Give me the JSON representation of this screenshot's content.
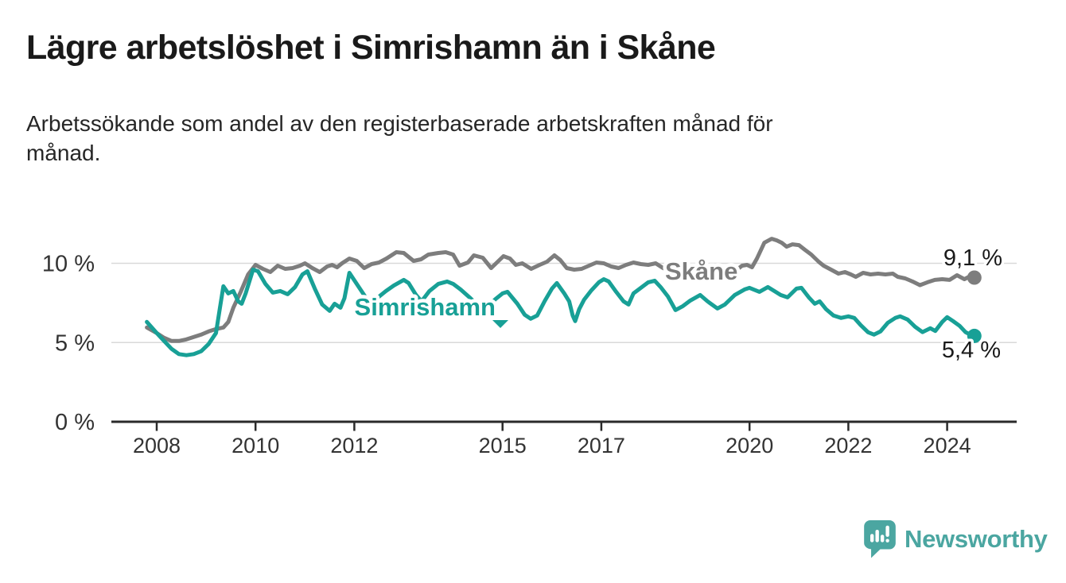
{
  "header": {
    "title": "Lägre arbetslöshet i Simrishamn än i Skåne",
    "subtitle": "Arbetssökande som andel av den registerbaserade arbetskraften månad för månad.",
    "subtitle_lines": [
      "Arbetssökande som andel av den registerbaserade arbetskraften månad för",
      "månad."
    ]
  },
  "footer": {
    "brand": "Newsworthy",
    "logo_icon": "speech-bubble-bar-chart-icon"
  },
  "colors": {
    "skane_line": "#7d7d7d",
    "simrishamn_line": "#18a096",
    "logo_teal": "#4ba6a1",
    "axis": "#2a2a2a",
    "gridline": "#d9d9d9",
    "tick_text": "#333333",
    "value_text": "#1a1a1a",
    "halo": "#ffffff"
  },
  "chart_data": {
    "type": "line",
    "title": "Lägre arbetslöshet i Simrishamn än i Skåne",
    "subtitle": "Arbetssökande som andel av den registerbaserade arbetskraften månad för månad.",
    "unit": "%",
    "grid": "horizontal-only",
    "legend_position": "inline-labels",
    "xlim": [
      2007.8,
      2025.4
    ],
    "ylim": [
      0,
      12.5
    ],
    "y_gridlines": [
      5,
      10
    ],
    "y_ticks": [
      {
        "value": 10,
        "label": "10 %"
      },
      {
        "value": 5,
        "label": "5 %"
      },
      {
        "value": 0,
        "label": "0 %"
      }
    ],
    "x_ticks": [
      {
        "value": 2008,
        "label": "2008"
      },
      {
        "value": 2010,
        "label": "2010"
      },
      {
        "value": 2012,
        "label": "2012"
      },
      {
        "value": 2015,
        "label": "2015"
      },
      {
        "value": 2017,
        "label": "2017"
      },
      {
        "value": 2020,
        "label": "2020"
      },
      {
        "value": 2022,
        "label": "2022"
      },
      {
        "value": 2024,
        "label": "2024"
      }
    ],
    "series": [
      {
        "id": "skane",
        "name": "Skåne",
        "color": "#7d7d7d",
        "end_value": 9.1,
        "end_label": "9,1 %",
        "points": [
          [
            2007.8,
            5.95
          ],
          [
            2008.0,
            5.6
          ],
          [
            2008.15,
            5.3
          ],
          [
            2008.3,
            5.1
          ],
          [
            2008.45,
            5.1
          ],
          [
            2008.6,
            5.2
          ],
          [
            2008.75,
            5.35
          ],
          [
            2008.9,
            5.5
          ],
          [
            2009.05,
            5.7
          ],
          [
            2009.2,
            5.85
          ],
          [
            2009.35,
            5.95
          ],
          [
            2009.45,
            6.3
          ],
          [
            2009.55,
            7.2
          ],
          [
            2009.7,
            8.2
          ],
          [
            2009.85,
            9.3
          ],
          [
            2010.0,
            9.9
          ],
          [
            2010.15,
            9.65
          ],
          [
            2010.3,
            9.45
          ],
          [
            2010.45,
            9.85
          ],
          [
            2010.6,
            9.65
          ],
          [
            2010.75,
            9.7
          ],
          [
            2010.9,
            9.85
          ],
          [
            2011.0,
            10.0
          ],
          [
            2011.15,
            9.7
          ],
          [
            2011.3,
            9.45
          ],
          [
            2011.45,
            9.8
          ],
          [
            2011.55,
            9.9
          ],
          [
            2011.65,
            9.75
          ],
          [
            2011.75,
            10.0
          ],
          [
            2011.9,
            10.3
          ],
          [
            2012.05,
            10.15
          ],
          [
            2012.2,
            9.7
          ],
          [
            2012.35,
            9.95
          ],
          [
            2012.5,
            10.05
          ],
          [
            2012.65,
            10.3
          ],
          [
            2012.85,
            10.7
          ],
          [
            2013.0,
            10.65
          ],
          [
            2013.2,
            10.15
          ],
          [
            2013.35,
            10.25
          ],
          [
            2013.5,
            10.55
          ],
          [
            2013.7,
            10.65
          ],
          [
            2013.85,
            10.7
          ],
          [
            2014.0,
            10.55
          ],
          [
            2014.13,
            9.85
          ],
          [
            2014.3,
            10.05
          ],
          [
            2014.42,
            10.5
          ],
          [
            2014.6,
            10.35
          ],
          [
            2014.77,
            9.7
          ],
          [
            2014.92,
            10.15
          ],
          [
            2015.02,
            10.45
          ],
          [
            2015.15,
            10.3
          ],
          [
            2015.27,
            9.9
          ],
          [
            2015.4,
            10.0
          ],
          [
            2015.58,
            9.65
          ],
          [
            2015.75,
            9.9
          ],
          [
            2015.9,
            10.1
          ],
          [
            2016.05,
            10.5
          ],
          [
            2016.17,
            10.2
          ],
          [
            2016.3,
            9.7
          ],
          [
            2016.45,
            9.6
          ],
          [
            2016.6,
            9.65
          ],
          [
            2016.75,
            9.85
          ],
          [
            2016.9,
            10.05
          ],
          [
            2017.05,
            10.0
          ],
          [
            2017.2,
            9.8
          ],
          [
            2017.35,
            9.7
          ],
          [
            2017.5,
            9.9
          ],
          [
            2017.65,
            10.05
          ],
          [
            2017.8,
            9.95
          ],
          [
            2017.95,
            9.9
          ],
          [
            2018.1,
            10.0
          ],
          [
            2018.25,
            9.7
          ],
          [
            2018.4,
            9.5
          ],
          [
            2018.6,
            9.55
          ],
          [
            2018.8,
            9.6
          ],
          [
            2019.0,
            9.55
          ],
          [
            2019.2,
            9.6
          ],
          [
            2019.4,
            9.55
          ],
          [
            2019.55,
            9.5
          ],
          [
            2019.7,
            9.5
          ],
          [
            2019.85,
            9.85
          ],
          [
            2019.95,
            9.9
          ],
          [
            2020.05,
            9.75
          ],
          [
            2020.15,
            10.3
          ],
          [
            2020.3,
            11.3
          ],
          [
            2020.45,
            11.55
          ],
          [
            2020.55,
            11.45
          ],
          [
            2020.65,
            11.3
          ],
          [
            2020.75,
            11.05
          ],
          [
            2020.87,
            11.2
          ],
          [
            2021.0,
            11.15
          ],
          [
            2021.12,
            10.85
          ],
          [
            2021.25,
            10.55
          ],
          [
            2021.4,
            10.1
          ],
          [
            2021.5,
            9.85
          ],
          [
            2021.65,
            9.6
          ],
          [
            2021.8,
            9.35
          ],
          [
            2021.93,
            9.45
          ],
          [
            2022.05,
            9.3
          ],
          [
            2022.15,
            9.15
          ],
          [
            2022.3,
            9.4
          ],
          [
            2022.45,
            9.3
          ],
          [
            2022.6,
            9.35
          ],
          [
            2022.75,
            9.3
          ],
          [
            2022.9,
            9.35
          ],
          [
            2023.0,
            9.15
          ],
          [
            2023.15,
            9.05
          ],
          [
            2023.3,
            8.85
          ],
          [
            2023.45,
            8.62
          ],
          [
            2023.6,
            8.8
          ],
          [
            2023.75,
            8.95
          ],
          [
            2023.9,
            9.0
          ],
          [
            2024.05,
            8.95
          ],
          [
            2024.2,
            9.25
          ],
          [
            2024.35,
            9.0
          ],
          [
            2024.47,
            9.2
          ],
          [
            2024.55,
            9.1
          ]
        ]
      },
      {
        "id": "simrishamn",
        "name": "Simrishamn",
        "color": "#18a096",
        "end_value": 5.4,
        "end_label": "5,4 %",
        "points": [
          [
            2007.8,
            6.3
          ],
          [
            2008.0,
            5.6
          ],
          [
            2008.15,
            5.1
          ],
          [
            2008.3,
            4.6
          ],
          [
            2008.45,
            4.27
          ],
          [
            2008.6,
            4.2
          ],
          [
            2008.75,
            4.27
          ],
          [
            2008.9,
            4.45
          ],
          [
            2009.05,
            4.9
          ],
          [
            2009.2,
            5.6
          ],
          [
            2009.28,
            7.2
          ],
          [
            2009.35,
            8.55
          ],
          [
            2009.45,
            8.1
          ],
          [
            2009.55,
            8.25
          ],
          [
            2009.65,
            7.6
          ],
          [
            2009.72,
            7.45
          ],
          [
            2009.8,
            8.1
          ],
          [
            2009.95,
            9.6
          ],
          [
            2010.05,
            9.5
          ],
          [
            2010.2,
            8.7
          ],
          [
            2010.35,
            8.15
          ],
          [
            2010.5,
            8.25
          ],
          [
            2010.65,
            8.05
          ],
          [
            2010.8,
            8.5
          ],
          [
            2010.95,
            9.3
          ],
          [
            2011.05,
            9.5
          ],
          [
            2011.2,
            8.4
          ],
          [
            2011.35,
            7.4
          ],
          [
            2011.5,
            7.0
          ],
          [
            2011.6,
            7.45
          ],
          [
            2011.72,
            7.2
          ],
          [
            2011.8,
            7.8
          ],
          [
            2011.9,
            9.4
          ],
          [
            2012.07,
            8.6
          ],
          [
            2012.23,
            7.85
          ],
          [
            2012.35,
            7.5
          ],
          [
            2012.48,
            7.85
          ],
          [
            2012.64,
            8.25
          ],
          [
            2012.8,
            8.6
          ],
          [
            2013.0,
            8.95
          ],
          [
            2013.1,
            8.75
          ],
          [
            2013.25,
            8.0
          ],
          [
            2013.36,
            7.6
          ],
          [
            2013.52,
            8.25
          ],
          [
            2013.7,
            8.7
          ],
          [
            2013.88,
            8.85
          ],
          [
            2014.0,
            8.7
          ],
          [
            2014.15,
            8.35
          ],
          [
            2014.35,
            7.8
          ],
          [
            2014.5,
            7.35
          ],
          [
            2014.65,
            7.1
          ],
          [
            2014.86,
            7.75
          ],
          [
            2015.0,
            8.1
          ],
          [
            2015.1,
            8.2
          ],
          [
            2015.3,
            7.45
          ],
          [
            2015.45,
            6.75
          ],
          [
            2015.57,
            6.5
          ],
          [
            2015.7,
            6.7
          ],
          [
            2015.85,
            7.6
          ],
          [
            2016.0,
            8.4
          ],
          [
            2016.1,
            8.75
          ],
          [
            2016.25,
            8.1
          ],
          [
            2016.35,
            7.6
          ],
          [
            2016.42,
            6.7
          ],
          [
            2016.47,
            6.35
          ],
          [
            2016.55,
            7.1
          ],
          [
            2016.65,
            7.7
          ],
          [
            2016.8,
            8.3
          ],
          [
            2016.95,
            8.8
          ],
          [
            2017.05,
            9.0
          ],
          [
            2017.15,
            8.85
          ],
          [
            2017.3,
            8.2
          ],
          [
            2017.45,
            7.6
          ],
          [
            2017.55,
            7.4
          ],
          [
            2017.65,
            8.1
          ],
          [
            2017.8,
            8.45
          ],
          [
            2017.95,
            8.8
          ],
          [
            2018.08,
            8.9
          ],
          [
            2018.2,
            8.5
          ],
          [
            2018.35,
            7.9
          ],
          [
            2018.5,
            7.05
          ],
          [
            2018.65,
            7.3
          ],
          [
            2018.8,
            7.65
          ],
          [
            2019.0,
            8.0
          ],
          [
            2019.15,
            7.6
          ],
          [
            2019.35,
            7.15
          ],
          [
            2019.5,
            7.4
          ],
          [
            2019.7,
            8.0
          ],
          [
            2019.9,
            8.35
          ],
          [
            2020.0,
            8.45
          ],
          [
            2020.2,
            8.2
          ],
          [
            2020.37,
            8.5
          ],
          [
            2020.5,
            8.25
          ],
          [
            2020.63,
            8.0
          ],
          [
            2020.77,
            7.85
          ],
          [
            2020.95,
            8.4
          ],
          [
            2021.05,
            8.45
          ],
          [
            2021.2,
            7.85
          ],
          [
            2021.32,
            7.45
          ],
          [
            2021.42,
            7.6
          ],
          [
            2021.55,
            7.1
          ],
          [
            2021.7,
            6.7
          ],
          [
            2021.85,
            6.55
          ],
          [
            2022.0,
            6.65
          ],
          [
            2022.12,
            6.55
          ],
          [
            2022.25,
            6.1
          ],
          [
            2022.4,
            5.65
          ],
          [
            2022.52,
            5.5
          ],
          [
            2022.65,
            5.7
          ],
          [
            2022.8,
            6.25
          ],
          [
            2022.95,
            6.55
          ],
          [
            2023.05,
            6.65
          ],
          [
            2023.2,
            6.45
          ],
          [
            2023.35,
            6.0
          ],
          [
            2023.5,
            5.66
          ],
          [
            2023.66,
            5.9
          ],
          [
            2023.76,
            5.73
          ],
          [
            2023.9,
            6.3
          ],
          [
            2024.0,
            6.6
          ],
          [
            2024.12,
            6.35
          ],
          [
            2024.25,
            6.06
          ],
          [
            2024.37,
            5.66
          ],
          [
            2024.47,
            5.5
          ],
          [
            2024.55,
            5.42
          ]
        ]
      }
    ]
  }
}
